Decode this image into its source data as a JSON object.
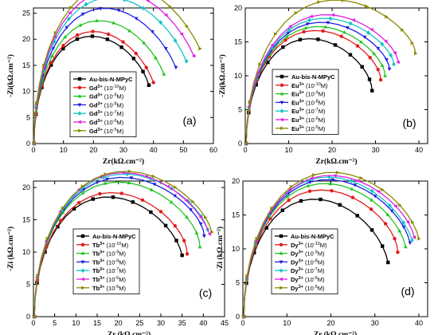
{
  "chart_data": [
    {
      "type": "line",
      "panel_label": "(a)",
      "xlabel": "Zr(kΩ.cm⁻²)",
      "ylabel": "-Zi(kΩ.cm⁻²)",
      "xlim": [
        0,
        60
      ],
      "ylim": [
        0,
        26
      ],
      "xticks": [
        0,
        10,
        20,
        30,
        40,
        50,
        60
      ],
      "yticks": [
        0,
        5,
        10,
        15,
        20,
        25
      ],
      "legend_position": "bottom-left",
      "series": [
        {
          "name": "Au-bis-N-MPyC",
          "ion": "",
          "conc": "",
          "color": "#000000",
          "marker": "square",
          "r": 19.5,
          "x_end": 38.5,
          "y_end": 11.2
        },
        {
          "name": "Gd³⁺ (10⁻¹⁰M)",
          "ion": "Gd³⁺",
          "conc": "10⁻¹⁰M",
          "color": "#e31a1c",
          "marker": "circle",
          "r": 20.5,
          "x_end": 40.0,
          "y_end": 11.7
        },
        {
          "name": "Gd³⁺ (10⁻⁹M)",
          "ion": "Gd³⁺",
          "conc": "10⁻⁹M",
          "color": "#22c422",
          "marker": "triangle-up",
          "r": 22.5,
          "x_end": 43.5,
          "y_end": 13.3
        },
        {
          "name": "Gd³⁺ (10⁻⁸M)",
          "ion": "Gd³⁺",
          "conc": "10⁻⁸M",
          "color": "#1f1fe0",
          "marker": "triangle-down",
          "r": 25.0,
          "x_end": 47.5,
          "y_end": 14.6
        },
        {
          "name": "Gd³⁺ (10⁻⁷M)",
          "ion": "Gd³⁺",
          "conc": "10⁻⁷M",
          "color": "#17c4c4",
          "marker": "diamond",
          "r": 27.0,
          "x_end": 51.0,
          "y_end": 15.8
        },
        {
          "name": "Gd³⁺ (10⁻⁶M)",
          "ion": "Gd³⁺",
          "conc": "10⁻⁶M",
          "color": "#e01ee0",
          "marker": "triangle-left",
          "r": 28.5,
          "x_end": 53.5,
          "y_end": 16.8
        },
        {
          "name": "Gd³⁺ (10⁻⁵M)",
          "ion": "Gd³⁺",
          "conc": "10⁻⁵M",
          "color": "#8a8a00",
          "marker": "triangle-right",
          "r": 30.0,
          "x_end": 55.5,
          "y_end": 18.2
        }
      ]
    },
    {
      "type": "line",
      "panel_label": "(b)",
      "xlabel": "Zr(kΩ.cm⁻²)",
      "ylabel": "-Zi(kΩ.cm⁻²)",
      "xlim": [
        0,
        42
      ],
      "ylim": [
        0,
        20
      ],
      "xticks": [
        0,
        10,
        20,
        30,
        40
      ],
      "yticks": [
        0,
        5,
        10,
        15,
        20
      ],
      "legend_position": "bottom-center",
      "series": [
        {
          "name": "Au-bis-N-MPyC",
          "ion": "",
          "conc": "",
          "color": "#000000",
          "marker": "square",
          "r": 14.5,
          "x_end": 31.5,
          "y_end": 7.8
        },
        {
          "name": "Eu³⁺ (10⁻¹⁰M)",
          "ion": "Eu³⁺",
          "conc": "10⁻¹⁰M",
          "color": "#e31a1c",
          "marker": "circle",
          "r": 15.5,
          "x_end": 32.5,
          "y_end": 9.4
        },
        {
          "name": "Eu³⁺ (10⁻⁹M)",
          "ion": "Eu³⁺",
          "conc": "10⁻⁹M",
          "color": "#22c422",
          "marker": "triangle-up",
          "r": 16.0,
          "x_end": 34.0,
          "y_end": 10.0
        },
        {
          "name": "Eu³⁺ (10⁻⁸M)",
          "ion": "Eu³⁺",
          "conc": "10⁻⁸M",
          "color": "#1f1fe0",
          "marker": "triangle-down",
          "r": 16.5,
          "x_end": 35.5,
          "y_end": 11.0
        },
        {
          "name": "Eu³⁺ (10⁻⁷M)",
          "ion": "Eu³⁺",
          "conc": "10⁻⁷M",
          "color": "#17c4c4",
          "marker": "diamond",
          "r": 17.0,
          "x_end": 36.5,
          "y_end": 11.7
        },
        {
          "name": "Eu³⁺ (10⁻⁶M)",
          "ion": "Eu³⁺",
          "conc": "10⁻⁶M",
          "color": "#e01ee0",
          "marker": "triangle-left",
          "r": 17.5,
          "x_end": 37.5,
          "y_end": 12.0
        },
        {
          "name": "Eu³⁺ (10⁻⁵M)",
          "ion": "Eu³⁺",
          "conc": "10⁻⁵M",
          "color": "#8a8a00",
          "marker": "triangle-right",
          "r": 19.5,
          "x_end": 40.0,
          "y_end": 13.3
        }
      ]
    },
    {
      "type": "line",
      "panel_label": "(c)",
      "xlabel": "Zr (kΩ.cm⁻²)",
      "ylabel": "-Zi (kΩ.cm⁻²)",
      "xlim": [
        0,
        45
      ],
      "ylim": [
        0,
        21
      ],
      "xticks": [
        0,
        5,
        10,
        15,
        20,
        25,
        30,
        35,
        40,
        45
      ],
      "yticks": [
        0,
        5,
        10,
        15,
        20
      ],
      "legend_position": "bottom-center",
      "series": [
        {
          "name": "Au-bis-N-MPyC",
          "ion": "",
          "conc": "",
          "color": "#000000",
          "marker": "square",
          "r": 17.5,
          "x_end": 35.0,
          "y_end": 9.5
        },
        {
          "name": "Tb³⁺ (10⁻¹⁰M)",
          "ion": "Tb³⁺",
          "conc": "10⁻¹⁰M",
          "color": "#e31a1c",
          "marker": "circle",
          "r": 18.0,
          "x_end": 36.5,
          "y_end": 9.7
        },
        {
          "name": "Tb³⁺ (10⁻⁹M)",
          "ion": "Tb³⁺",
          "conc": "10⁻⁹M",
          "color": "#22c422",
          "marker": "triangle-up",
          "r": 19.5,
          "x_end": 39.5,
          "y_end": 10.8
        },
        {
          "name": "Tb³⁺ (10⁻⁸M)",
          "ion": "Tb³⁺",
          "conc": "10⁻⁸M",
          "color": "#1f1fe0",
          "marker": "triangle-down",
          "r": 20.0,
          "x_end": 40.5,
          "y_end": 12.5
        },
        {
          "name": "Tb³⁺ (10⁻⁷M)",
          "ion": "Tb³⁺",
          "conc": "10⁻⁷M",
          "color": "#17c4c4",
          "marker": "diamond",
          "r": 20.5,
          "x_end": 41.0,
          "y_end": 13.5
        },
        {
          "name": "Tb³⁺ (10⁻⁶M)",
          "ion": "Tb³⁺",
          "conc": "10⁻⁶M",
          "color": "#e01ee0",
          "marker": "triangle-left",
          "r": 21.0,
          "x_end": 41.5,
          "y_end": 12.8
        },
        {
          "name": "Tb³⁺ (10⁻⁵M)",
          "ion": "Tb³⁺",
          "conc": "10⁻⁵M",
          "color": "#8a8a00",
          "marker": "triangle-right",
          "r": 21.0,
          "x_end": 42.0,
          "y_end": 13.1
        }
      ]
    },
    {
      "type": "line",
      "panel_label": "(d)",
      "xlabel": "Zr (kΩ.cm⁻²)",
      "ylabel": "-Zi (kΩ.cm⁻²)",
      "xlim": [
        0,
        42
      ],
      "ylim": [
        0,
        20
      ],
      "xticks": [
        0,
        10,
        20,
        30,
        40
      ],
      "yticks": [
        0,
        5,
        10,
        15,
        20
      ],
      "legend_position": "bottom-center",
      "series": [
        {
          "name": "Au-bis-N-MPyC",
          "ion": "",
          "conc": "",
          "color": "#000000",
          "marker": "square",
          "r": 16.5,
          "x_end": 33.0,
          "y_end": 8.0
        },
        {
          "name": "Dy³⁺ (10⁻¹⁰M)",
          "ion": "Dy³⁺",
          "conc": "10⁻¹⁰M",
          "color": "#e31a1c",
          "marker": "circle",
          "r": 17.5,
          "x_end": 35.5,
          "y_end": 9.5
        },
        {
          "name": "Dy³⁺ (10⁻⁹M)",
          "ion": "Dy³⁺",
          "conc": "10⁻⁹M",
          "color": "#22c422",
          "marker": "triangle-up",
          "r": 18.5,
          "x_end": 37.0,
          "y_end": 10.3
        },
        {
          "name": "Dy³⁺ (10⁻⁸M)",
          "ion": "Dy³⁺",
          "conc": "10⁻⁸M",
          "color": "#1f1fe0",
          "marker": "triangle-down",
          "r": 19.0,
          "x_end": 38.0,
          "y_end": 10.9
        },
        {
          "name": "Dy³⁺ (10⁻⁷M)",
          "ion": "Dy³⁺",
          "conc": "10⁻⁷M",
          "color": "#17c4c4",
          "marker": "diamond",
          "r": 19.5,
          "x_end": 38.5,
          "y_end": 11.3
        },
        {
          "name": "Dy³⁺ (10⁻⁶M)",
          "ion": "Dy³⁺",
          "conc": "10⁻⁶M",
          "color": "#e01ee0",
          "marker": "triangle-left",
          "r": 19.5,
          "x_end": 39.0,
          "y_end": 11.7
        },
        {
          "name": "Dy³⁺ (10⁻⁵M)",
          "ion": "Dy³⁺",
          "conc": "10⁻⁵M",
          "color": "#8a8a00",
          "marker": "triangle-right",
          "r": 20.0,
          "x_end": 40.0,
          "y_end": 11.5
        }
      ]
    }
  ]
}
